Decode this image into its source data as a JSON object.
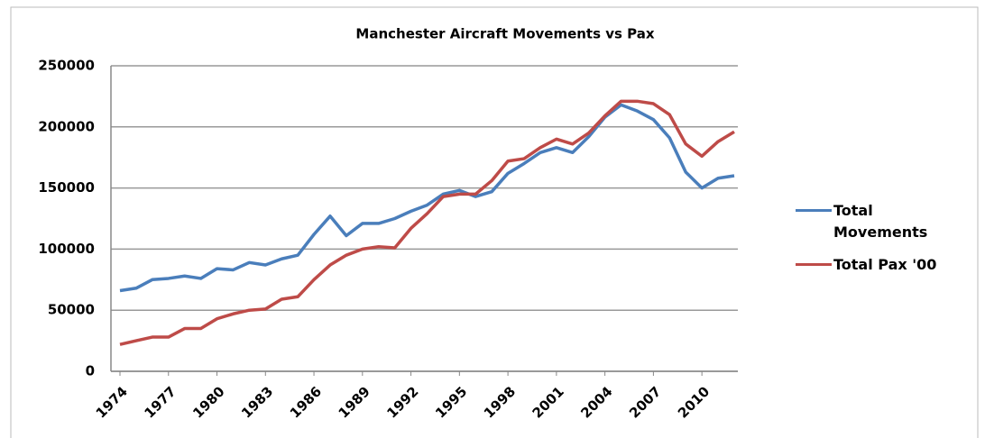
{
  "chart_data": {
    "type": "line",
    "title": "Manchester Aircraft Movements  vs Pax",
    "x": [
      1974,
      1975,
      1976,
      1977,
      1978,
      1979,
      1980,
      1981,
      1982,
      1983,
      1984,
      1985,
      1986,
      1987,
      1988,
      1989,
      1990,
      1991,
      1992,
      1993,
      1994,
      1995,
      1996,
      1997,
      1998,
      1999,
      2000,
      2001,
      2002,
      2003,
      2004,
      2005,
      2006,
      2007,
      2008,
      2009,
      2010,
      2011,
      2012
    ],
    "series": [
      {
        "name": "Total Movements",
        "color": "#4a7ebb",
        "values": [
          66000,
          68000,
          75000,
          76000,
          78000,
          76000,
          84000,
          83000,
          89000,
          87000,
          92000,
          95000,
          112000,
          127000,
          111000,
          121000,
          121000,
          125000,
          131000,
          136000,
          145000,
          148000,
          143000,
          147000,
          162000,
          170000,
          179000,
          183000,
          179000,
          192000,
          208000,
          218000,
          213000,
          206000,
          191000,
          163000,
          150000,
          158000,
          160000
        ]
      },
      {
        "name": "Total Pax '00",
        "color": "#be4b48",
        "values": [
          22000,
          25000,
          28000,
          28000,
          35000,
          35000,
          43000,
          47000,
          50000,
          51000,
          59000,
          61000,
          75000,
          87000,
          95000,
          100000,
          102000,
          101000,
          117000,
          129000,
          143000,
          145000,
          145000,
          156000,
          172000,
          174000,
          183000,
          190000,
          186000,
          195000,
          209000,
          221000,
          221000,
          219000,
          210000,
          186000,
          176000,
          188000,
          196000
        ]
      }
    ],
    "xlim": [
      1974,
      2012
    ],
    "xticks": [
      1974,
      1977,
      1980,
      1983,
      1986,
      1989,
      1992,
      1995,
      1998,
      2001,
      2004,
      2007,
      2010
    ],
    "ylim": [
      0,
      250000
    ],
    "yticks": [
      0,
      50000,
      100000,
      150000,
      200000,
      250000
    ],
    "grid": true,
    "legend": "right"
  }
}
